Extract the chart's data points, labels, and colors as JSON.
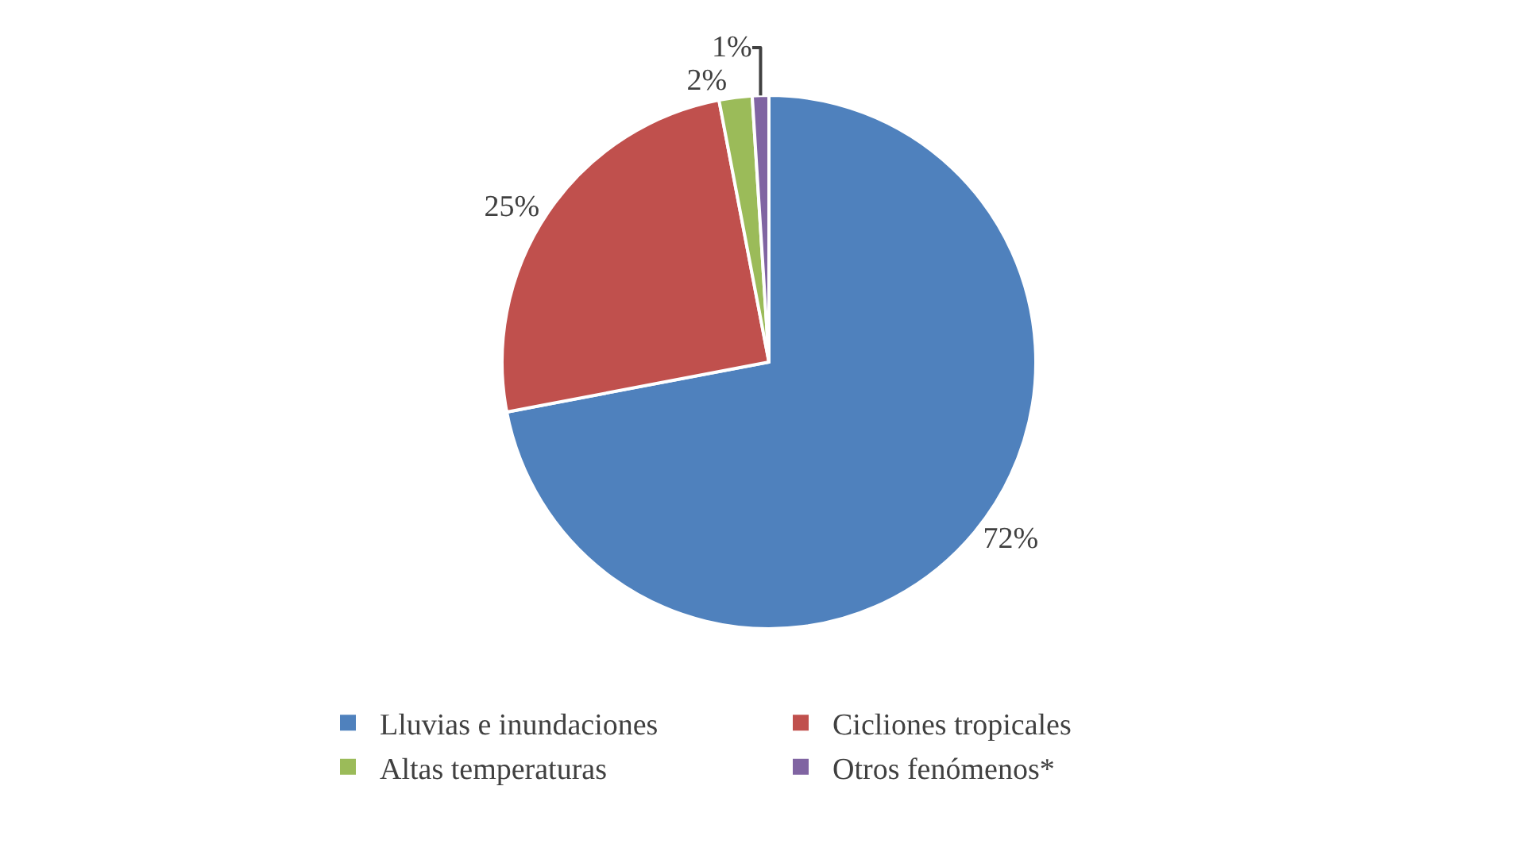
{
  "chart_data": {
    "type": "pie",
    "categories": [
      "Lluvias e inundaciones",
      "Cicliones tropicales",
      "Altas temperaturas",
      "Otros fenómenos*"
    ],
    "values": [
      72,
      25,
      2,
      1
    ],
    "colors": [
      "#4f81bd",
      "#c0504d",
      "#9bbb59",
      "#8064a2"
    ],
    "value_labels": [
      "72%",
      "25%",
      "2%",
      "1%"
    ],
    "legend": "bottom"
  }
}
